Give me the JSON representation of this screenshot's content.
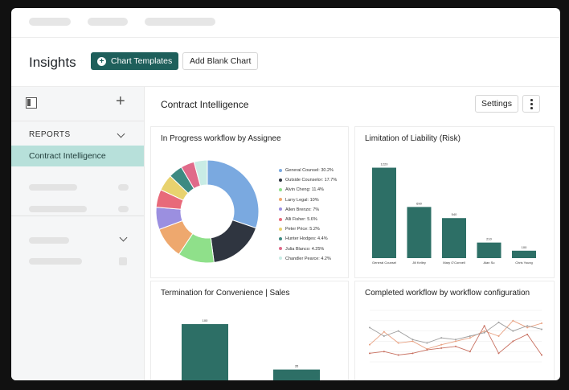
{
  "header": {
    "title": "Insights",
    "chart_templates_label": "Chart Templates",
    "add_blank_chart_label": "Add Blank Chart"
  },
  "sidebar": {
    "reports_label": "REPORTS",
    "active_item": "Contract Intelligence"
  },
  "main": {
    "title": "Contract Intelligence",
    "settings_label": "Settings"
  },
  "colors": {
    "brand": "#1e5f5b",
    "bar": "#2d6f66",
    "active_bg": "#b7e0da"
  },
  "chart_data": [
    {
      "type": "pie",
      "title": "In Progress workflow by Assignee",
      "categories": [
        "General Counsel: 30.2%",
        "Outside Counselor: 17.7%",
        "Alvin Cheng: 11.4%",
        "Larry Legal: 10%",
        "Allen Brenzo: 7%",
        "Alli Fisher: 5.6%",
        "Peter Price: 5.2%",
        "Hunter Hodges: 4.4%",
        "Julia Blanco: 4.25%",
        "Chandler Pearce: 4.2%"
      ],
      "values": [
        30.2,
        17.7,
        11.4,
        10,
        7,
        5.6,
        5.2,
        4.4,
        4.25,
        4.2
      ],
      "colors": [
        "#7aa9e0",
        "#2f3540",
        "#8fe08a",
        "#eea86e",
        "#9b8fe0",
        "#e86a7a",
        "#e8d26e",
        "#3e8a82",
        "#e06a8a",
        "#c9ece5"
      ],
      "legend": "right"
    },
    {
      "type": "bar",
      "title": "Limitation of Liability (Risk)",
      "categories": [
        "General Counsel",
        "Jill Kelley",
        "Mary O'Connell",
        "Alan Su",
        "Chris Young"
      ],
      "values": [
        1220,
        690,
        540,
        210,
        100
      ],
      "ylim": [
        0,
        1280
      ]
    },
    {
      "type": "bar",
      "title": "Termination for Convenience | Sales",
      "categories": [
        "",
        ""
      ],
      "values": [
        100,
        35
      ],
      "ylim": [
        0,
        115
      ]
    },
    {
      "type": "line",
      "title": "Completed workflow by workflow configuration",
      "x": [
        1,
        2,
        3,
        4,
        5,
        6,
        7,
        8,
        9,
        10,
        11,
        12,
        13
      ],
      "series": [
        {
          "values": [
            20,
            35,
            22,
            24,
            15,
            20,
            24,
            28,
            36,
            30,
            48,
            40,
            45
          ],
          "color": "#e8a080"
        },
        {
          "values": [
            10,
            12,
            8,
            10,
            14,
            16,
            18,
            12,
            42,
            10,
            24,
            32,
            8
          ],
          "color": "#c87060"
        },
        {
          "values": [
            40,
            30,
            36,
            26,
            22,
            28,
            26,
            30,
            34,
            46,
            36,
            42,
            38
          ],
          "color": "#a0a0a0"
        }
      ],
      "ylim": [
        0,
        60
      ],
      "legend": "bottom-left"
    }
  ]
}
